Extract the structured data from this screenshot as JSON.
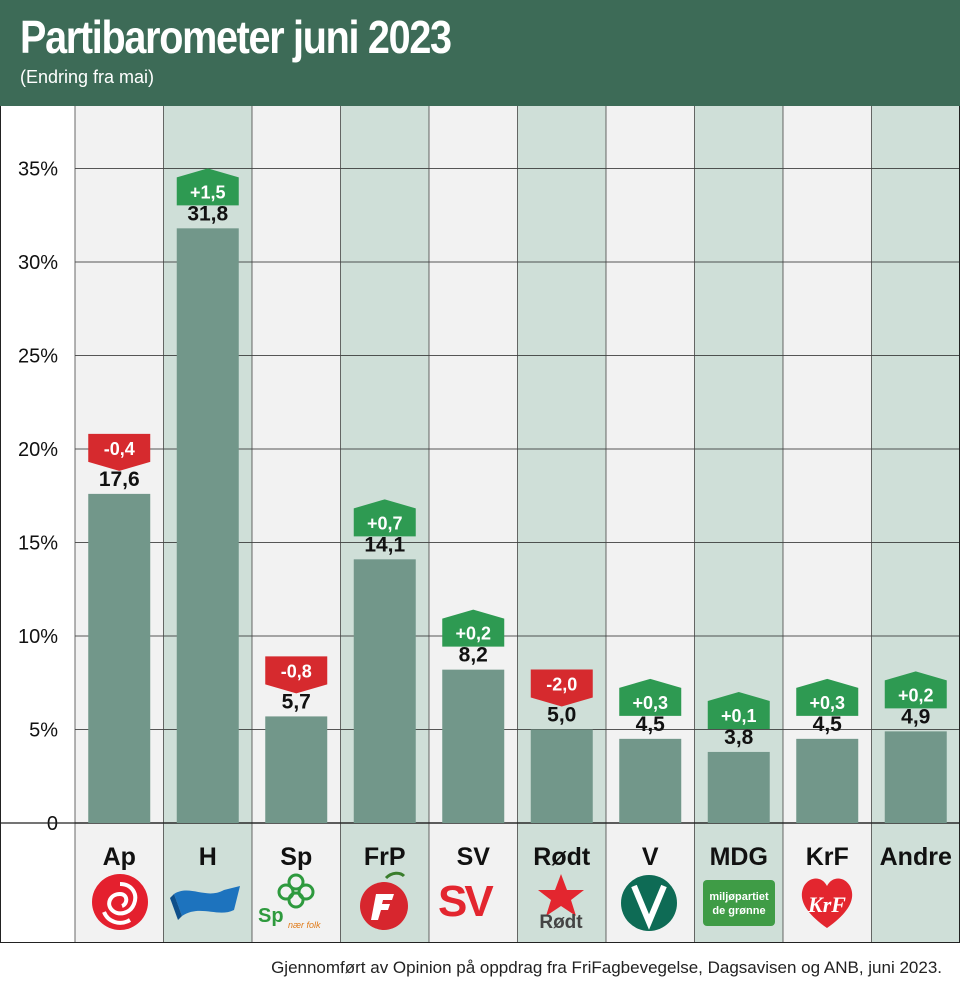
{
  "header": {
    "title": "Partibarometer juni 2023",
    "subtitle": "(Endring fra mai)"
  },
  "colors": {
    "header_bg": "#3d6b57",
    "bar": "#72978a",
    "column_light": "#f2f2f2",
    "column_shaded": "#cfdfd8",
    "badge_up": "#2e9a52",
    "badge_down": "#d62a2e",
    "text": "#111111"
  },
  "chart_data": {
    "type": "bar",
    "categories": [
      "Ap",
      "H",
      "Sp",
      "FrP",
      "SV",
      "Rødt",
      "V",
      "MDG",
      "KrF",
      "Andre"
    ],
    "values": [
      17.6,
      31.8,
      5.7,
      14.1,
      8.2,
      5.0,
      4.5,
      3.8,
      4.5,
      4.9
    ],
    "value_labels": [
      "17,6",
      "31,8",
      "5,7",
      "14,1",
      "8,2",
      "5,0",
      "4,5",
      "3,8",
      "4,5",
      "4,9"
    ],
    "changes": [
      -0.4,
      1.5,
      -0.8,
      0.7,
      0.2,
      -2.0,
      0.3,
      0.1,
      0.3,
      0.2
    ],
    "change_labels": [
      "-0,4",
      "+1,5",
      "-0,8",
      "+0,7",
      "+0,2",
      "-2,0",
      "+0,3",
      "+0,1",
      "+0,3",
      "+0,2"
    ],
    "y_ticks": [
      "0",
      "5%",
      "10%",
      "15%",
      "20%",
      "25%",
      "30%",
      "35%"
    ],
    "y_tick_values": [
      0,
      5,
      10,
      15,
      20,
      25,
      30,
      35
    ],
    "ylim": [
      0,
      38
    ],
    "grid": true,
    "xlabel": "",
    "ylabel": ""
  },
  "logos": {
    "ap": {
      "icon": "ap-rose-icon"
    },
    "h": {
      "icon": "h-banner-icon"
    },
    "sp": {
      "icon": "sp-clover-icon",
      "text": "Sp",
      "slogan": "nær folk"
    },
    "frp": {
      "icon": "frp-apple-icon"
    },
    "sv": {
      "icon": "sv-logo-icon",
      "text": "SV"
    },
    "rodt": {
      "icon": "rodt-star-icon",
      "text": "Rødt"
    },
    "v": {
      "icon": "v-logo-icon"
    },
    "mdg": {
      "icon": "mdg-logo-icon",
      "line1": "miljøpartiet",
      "line2": "de grønne"
    },
    "krf": {
      "icon": "krf-heart-icon",
      "text": "KrF"
    }
  },
  "footer": {
    "source": "Gjennomført av Opinion på oppdrag fra FriFagbevegelse, Dagsavisen og ANB, juni 2023."
  }
}
